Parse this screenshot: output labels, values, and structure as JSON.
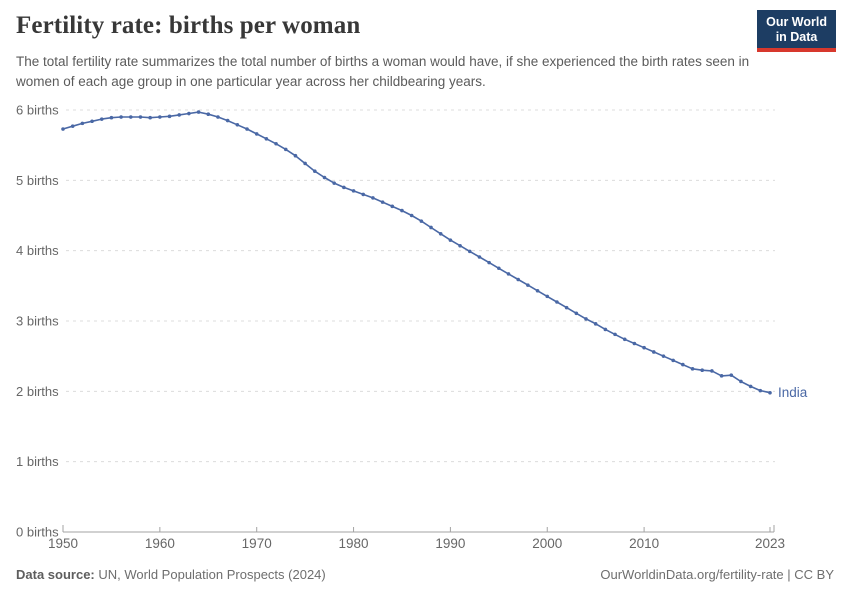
{
  "header": {
    "title": "Fertility rate: births per woman",
    "subtitle": "The total fertility rate summarizes the total number of births a woman would have, if she experienced the birth rates seen in women of each age group in one particular year across her childbearing years.",
    "logo": {
      "line1": "Our World",
      "line2": "in Data"
    }
  },
  "footer": {
    "source_label": "Data source:",
    "source_text": " UN, World Population Prospects (2024)",
    "link_text": "OurWorldinData.org/fertility-rate",
    "license_text": " | CC BY"
  },
  "colors": {
    "line": "#4a68a5",
    "entity_label": "#4a68a5",
    "grid": "#dcdcdc",
    "axis": "#a3a3a3",
    "tick_text": "#676767",
    "logo_bg": "#1d3d63",
    "logo_stripe": "#d7382d",
    "title_text": "#383838",
    "subtitle_text": "#5b5b5b"
  },
  "chart_data": {
    "type": "line",
    "title": "Fertility rate: births per woman",
    "entity": "India",
    "xlabel": "",
    "ylabel": "births",
    "ylim": [
      0,
      6
    ],
    "xlim": [
      1950,
      2023
    ],
    "grid": "horizontal-dashed",
    "legend_position": "end-of-line",
    "yticks": [
      0,
      1,
      2,
      3,
      4,
      5,
      6
    ],
    "ytick_labels": [
      "0 births",
      "1 births",
      "2 births",
      "3 births",
      "4 births",
      "5 births",
      "6 births"
    ],
    "xticks": [
      1950,
      1960,
      1970,
      1980,
      1990,
      2000,
      2010,
      2023
    ],
    "xtick_labels": [
      "1950",
      "1960",
      "1970",
      "1980",
      "1990",
      "2000",
      "2010",
      "2023"
    ],
    "x": [
      1950,
      1951,
      1952,
      1953,
      1954,
      1955,
      1956,
      1957,
      1958,
      1959,
      1960,
      1961,
      1962,
      1963,
      1964,
      1965,
      1966,
      1967,
      1968,
      1969,
      1970,
      1971,
      1972,
      1973,
      1974,
      1975,
      1976,
      1977,
      1978,
      1979,
      1980,
      1981,
      1982,
      1983,
      1984,
      1985,
      1986,
      1987,
      1988,
      1989,
      1990,
      1991,
      1992,
      1993,
      1994,
      1995,
      1996,
      1997,
      1998,
      1999,
      2000,
      2001,
      2002,
      2003,
      2004,
      2005,
      2006,
      2007,
      2008,
      2009,
      2010,
      2011,
      2012,
      2013,
      2014,
      2015,
      2016,
      2017,
      2018,
      2019,
      2020,
      2021,
      2022,
      2023
    ],
    "series": [
      {
        "name": "India",
        "color": "#4a68a5",
        "values": [
          5.73,
          5.77,
          5.81,
          5.84,
          5.87,
          5.89,
          5.9,
          5.9,
          5.9,
          5.89,
          5.9,
          5.91,
          5.93,
          5.95,
          5.97,
          5.94,
          5.9,
          5.85,
          5.79,
          5.73,
          5.66,
          5.59,
          5.52,
          5.44,
          5.35,
          5.24,
          5.13,
          5.04,
          4.96,
          4.9,
          4.85,
          4.8,
          4.75,
          4.69,
          4.63,
          4.57,
          4.5,
          4.42,
          4.33,
          4.24,
          4.15,
          4.07,
          3.99,
          3.91,
          3.83,
          3.75,
          3.67,
          3.59,
          3.51,
          3.43,
          3.35,
          3.27,
          3.19,
          3.11,
          3.03,
          2.96,
          2.88,
          2.81,
          2.74,
          2.68,
          2.62,
          2.56,
          2.5,
          2.44,
          2.38,
          2.32,
          2.3,
          2.29,
          2.22,
          2.23,
          2.14,
          2.07,
          2.01,
          1.98
        ]
      }
    ]
  }
}
